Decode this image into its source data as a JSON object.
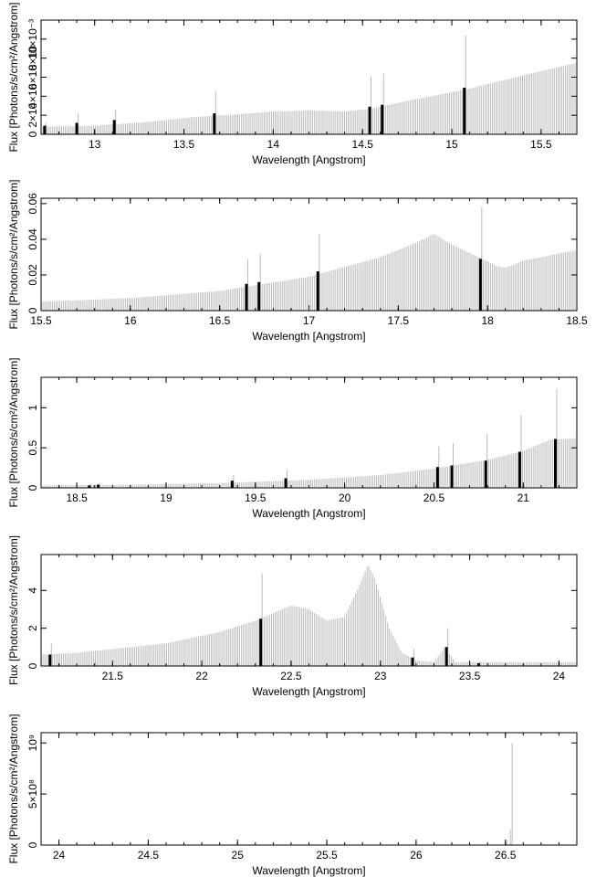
{
  "figure": {
    "xlabel": "Wavelength [Angstrom]",
    "ylabel": "Flux [Photons/s/cm²/Angstrom]"
  },
  "chart_data": [
    {
      "type": "bar",
      "xlabel": "Wavelength [Angstrom]",
      "ylabel": "Flux [Photons/s/cm²/Angstrom]",
      "xlim": [
        12.7,
        15.7
      ],
      "ylim": [
        0,
        0.012
      ],
      "xticks": [
        13,
        13.5,
        14,
        14.5,
        15,
        15.5
      ],
      "xtick_labels": [
        "13",
        "13.5",
        "14",
        "14.5",
        "15",
        "15.5"
      ],
      "yticks": [
        0,
        0.002,
        0.004,
        0.006,
        0.008,
        0.01
      ],
      "ytick_labels": [
        "0",
        "2×10",
        "4×10",
        "6×10",
        "8×10",
        "10×10⁻³"
      ],
      "continuum": [
        [
          12.7,
          0.0008
        ],
        [
          13.0,
          0.0009
        ],
        [
          13.3,
          0.0013
        ],
        [
          13.55,
          0.0018
        ],
        [
          13.8,
          0.0021
        ],
        [
          14.0,
          0.0024
        ],
        [
          14.2,
          0.0025
        ],
        [
          14.4,
          0.0024
        ],
        [
          14.55,
          0.0027
        ],
        [
          14.8,
          0.0037
        ],
        [
          15.1,
          0.0048
        ],
        [
          15.4,
          0.0062
        ],
        [
          15.7,
          0.0075
        ]
      ],
      "lines": [
        {
          "x": 12.72,
          "obs": 0.0009,
          "top": 0.0012
        },
        {
          "x": 12.9,
          "obs": 0.0012,
          "top": 0.0022
        },
        {
          "x": 13.11,
          "obs": 0.0015,
          "top": 0.0026
        },
        {
          "x": 13.67,
          "obs": 0.0022,
          "top": 0.0046
        },
        {
          "x": 14.54,
          "obs": 0.0029,
          "top": 0.0061
        },
        {
          "x": 14.61,
          "obs": 0.0031,
          "top": 0.0064
        },
        {
          "x": 15.07,
          "obs": 0.0049,
          "top": 0.0104
        }
      ],
      "color_model": "#bbbbbb",
      "color_data": "#000000"
    },
    {
      "type": "bar",
      "xlabel": "Wavelength [Angstrom]",
      "ylabel": "Flux [Photons/s/cm²/Angstrom]",
      "xlim": [
        15.5,
        18.5
      ],
      "ylim": [
        0,
        0.063
      ],
      "xticks": [
        15.5,
        16,
        16.5,
        17,
        17.5,
        18,
        18.5
      ],
      "xtick_labels": [
        "15.5",
        "16",
        "16.5",
        "17",
        "17.5",
        "18",
        "18.5"
      ],
      "yticks": [
        0,
        0.02,
        0.04,
        0.06
      ],
      "ytick_labels": [
        "0",
        "0.02",
        "0.04",
        "0.06"
      ],
      "continuum": [
        [
          15.5,
          0.005
        ],
        [
          16.0,
          0.007
        ],
        [
          16.5,
          0.011
        ],
        [
          17.0,
          0.019
        ],
        [
          17.4,
          0.03
        ],
        [
          17.6,
          0.038
        ],
        [
          17.7,
          0.043
        ],
        [
          17.8,
          0.037
        ],
        [
          17.95,
          0.03
        ],
        [
          18.05,
          0.025
        ],
        [
          18.1,
          0.024
        ],
        [
          18.2,
          0.028
        ],
        [
          18.5,
          0.034
        ]
      ],
      "lines": [
        {
          "x": 16.65,
          "obs": 0.015,
          "top": 0.029
        },
        {
          "x": 16.72,
          "obs": 0.016,
          "top": 0.032
        },
        {
          "x": 17.05,
          "obs": 0.022,
          "top": 0.043
        },
        {
          "x": 17.96,
          "obs": 0.029,
          "top": 0.058
        }
      ],
      "color_model": "#bbbbbb",
      "color_data": "#000000"
    },
    {
      "type": "bar",
      "xlabel": "Wavelength [Angstrom]",
      "ylabel": "Flux [Photons/s/cm²/Angstrom]",
      "xlim": [
        18.3,
        21.3
      ],
      "ylim": [
        0,
        1.38
      ],
      "xticks": [
        18.5,
        19,
        19.5,
        20,
        20.5,
        21
      ],
      "xtick_labels": [
        "18.5",
        "19",
        "19.5",
        "20",
        "20.5",
        "21"
      ],
      "yticks": [
        0,
        0.5,
        1
      ],
      "ytick_labels": [
        "0",
        "0.5",
        "1"
      ],
      "continuum": [
        [
          18.3,
          0.03
        ],
        [
          18.8,
          0.04
        ],
        [
          19.3,
          0.06
        ],
        [
          19.8,
          0.1
        ],
        [
          20.2,
          0.16
        ],
        [
          20.5,
          0.24
        ],
        [
          20.8,
          0.35
        ],
        [
          21.0,
          0.46
        ],
        [
          21.15,
          0.6
        ],
        [
          21.3,
          0.62
        ]
      ],
      "lines": [
        {
          "x": 18.57,
          "obs": 0.03,
          "top": 0.05
        },
        {
          "x": 18.62,
          "obs": 0.04,
          "top": 0.06
        },
        {
          "x": 19.37,
          "obs": 0.09,
          "top": 0.16
        },
        {
          "x": 19.67,
          "obs": 0.12,
          "top": 0.22
        },
        {
          "x": 20.52,
          "obs": 0.26,
          "top": 0.52
        },
        {
          "x": 20.6,
          "obs": 0.28,
          "top": 0.56
        },
        {
          "x": 20.79,
          "obs": 0.34,
          "top": 0.68
        },
        {
          "x": 20.98,
          "obs": 0.45,
          "top": 0.91
        },
        {
          "x": 21.18,
          "obs": 0.61,
          "top": 1.24
        }
      ],
      "color_model": "#bbbbbb",
      "color_data": "#000000"
    },
    {
      "type": "bar",
      "xlabel": "Wavelength [Angstrom]",
      "ylabel": "Flux [Photons/s/cm²/Angstrom]",
      "xlim": [
        21.1,
        24.1
      ],
      "ylim": [
        0,
        5.9
      ],
      "xticks": [
        21.5,
        22,
        22.5,
        23,
        23.5,
        24
      ],
      "xtick_labels": [
        "21.5",
        "22",
        "22.5",
        "23",
        "23.5",
        "24"
      ],
      "yticks": [
        0,
        2,
        4
      ],
      "ytick_labels": [
        "0",
        "2",
        "4"
      ],
      "continuum": [
        [
          21.1,
          0.6
        ],
        [
          21.3,
          0.7
        ],
        [
          21.5,
          0.9
        ],
        [
          21.8,
          1.2
        ],
        [
          22.1,
          1.8
        ],
        [
          22.3,
          2.4
        ],
        [
          22.5,
          3.2
        ],
        [
          22.6,
          3.0
        ],
        [
          22.7,
          2.4
        ],
        [
          22.8,
          2.6
        ],
        [
          22.88,
          4.2
        ],
        [
          22.93,
          5.4
        ],
        [
          22.97,
          4.6
        ],
        [
          23.05,
          2.0
        ],
        [
          23.12,
          0.7
        ],
        [
          23.2,
          0.3
        ],
        [
          23.3,
          0.2
        ],
        [
          23.36,
          1.0
        ],
        [
          23.42,
          0.2
        ],
        [
          24.1,
          0.2
        ]
      ],
      "lines": [
        {
          "x": 21.15,
          "obs": 0.6,
          "top": 1.2
        },
        {
          "x": 22.33,
          "obs": 2.5,
          "top": 4.9
        },
        {
          "x": 23.18,
          "obs": 0.45,
          "top": 0.9
        },
        {
          "x": 23.37,
          "obs": 1.0,
          "top": 2.0
        },
        {
          "x": 23.55,
          "obs": 0.15,
          "top": 0.25
        }
      ],
      "color_model": "#bbbbbb",
      "color_data": "#000000"
    },
    {
      "type": "bar",
      "xlabel": "Wavelength [Angstrom]",
      "ylabel": "Flux [Photons/s/cm²/Angstrom]",
      "xlim": [
        23.9,
        26.9
      ],
      "ylim": [
        0,
        1100000000.0
      ],
      "xticks": [
        24,
        24.5,
        25,
        25.5,
        26,
        26.5
      ],
      "xtick_labels": [
        "24",
        "24.5",
        "25",
        "25.5",
        "26",
        "26.5"
      ],
      "yticks": [
        0,
        500000000,
        1000000000
      ],
      "ytick_labels": [
        "0",
        "5×10⁸",
        "10⁹"
      ],
      "continuum": [
        [
          23.9,
          0
        ],
        [
          26.9,
          0
        ]
      ],
      "lines": [
        {
          "x": 26.5,
          "obs": 0,
          "top": 50000000
        },
        {
          "x": 26.52,
          "obs": 0,
          "top": 150000000
        },
        {
          "x": 26.53,
          "obs": 0,
          "top": 1000000000
        }
      ],
      "color_model": "#bbbbbb",
      "color_data": "#000000"
    }
  ]
}
